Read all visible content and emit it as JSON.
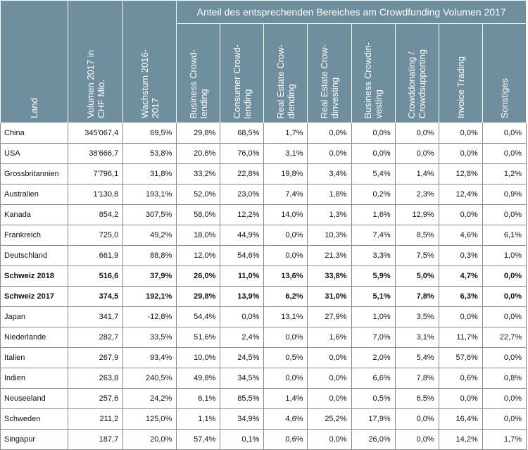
{
  "header": {
    "land": "Land",
    "volumen": "Volumen 2017 in\nCHF Mio.",
    "wachstum": "Wachstum 2016-\n2017",
    "group": "Anteil des entsprechenden Bereiches am Crowdfunding Volumen 2017",
    "sub": [
      "Business Crowd-\nlending",
      "Consumer Crowd-\nlending",
      "Real Estate Crow-\ndlending",
      "Real Estate Crow-\ndinvesting",
      "Business Crowdin-\nvesting",
      "Crowddonating /\nCrowdsupporting",
      "Invoice Trading",
      "Sonstiges"
    ]
  },
  "rows": [
    {
      "land": "China",
      "volumen": "345'067,4",
      "wachstum": "69,5%",
      "v": [
        "29,8%",
        "68,5%",
        "1,7%",
        "0,0%",
        "0,0%",
        "0,0%",
        "0,0%",
        "0,0%"
      ],
      "bold": false
    },
    {
      "land": "USA",
      "volumen": "38'666,7",
      "wachstum": "53,8%",
      "v": [
        "20,8%",
        "76,0%",
        "3,1%",
        "0,0%",
        "0,0%",
        "0,0%",
        "0,0%",
        "0,0%"
      ],
      "bold": false
    },
    {
      "land": "Grossbritannien",
      "volumen": "7'796,1",
      "wachstum": "31,8%",
      "v": [
        "33,2%",
        "22,8%",
        "19,8%",
        "3,4%",
        "5,4%",
        "1,4%",
        "12,8%",
        "1,2%"
      ],
      "bold": false
    },
    {
      "land": "Australien",
      "volumen": "1'130,8",
      "wachstum": "193,1%",
      "v": [
        "52,0%",
        "23,0%",
        "7,4%",
        "1,8%",
        "0,2%",
        "2,3%",
        "12,4%",
        "0,9%"
      ],
      "bold": false
    },
    {
      "land": "Kanada",
      "volumen": "854,2",
      "wachstum": "307,5%",
      "v": [
        "58,0%",
        "12,2%",
        "14,0%",
        "1,3%",
        "1,6%",
        "12,9%",
        "0,0%",
        "0,0%"
      ],
      "bold": false
    },
    {
      "land": "Frankreich",
      "volumen": "725,0",
      "wachstum": "49,2%",
      "v": [
        "18,0%",
        "44,9%",
        "0,0%",
        "10,3%",
        "7,4%",
        "8,5%",
        "4,6%",
        "6,1%"
      ],
      "bold": false
    },
    {
      "land": "Deutschland",
      "volumen": "661,9",
      "wachstum": "88,8%",
      "v": [
        "12,0%",
        "54,6%",
        "0,0%",
        "21,3%",
        "3,3%",
        "7,5%",
        "0,3%",
        "1,0%"
      ],
      "bold": false
    },
    {
      "land": "Schweiz 2018",
      "volumen": "516,6",
      "wachstum": "37,9%",
      "v": [
        "26,0%",
        "11,0%",
        "13,6%",
        "33,8%",
        "5,9%",
        "5,0%",
        "4,7%",
        "0,0%"
      ],
      "bold": true
    },
    {
      "land": "Schweiz 2017",
      "volumen": "374,5",
      "wachstum": "192,1%",
      "v": [
        "29,8%",
        "13,9%",
        "6,2%",
        "31,0%",
        "5,1%",
        "7,8%",
        "6,3%",
        "0,0%"
      ],
      "bold": true
    },
    {
      "land": "Japan",
      "volumen": "341,7",
      "wachstum": "-12,8%",
      "v": [
        "54,4%",
        "0,0%",
        "13,1%",
        "27,9%",
        "1,0%",
        "3,5%",
        "0,0%",
        "0,0%"
      ],
      "bold": false
    },
    {
      "land": "Niederlande",
      "volumen": "282,7",
      "wachstum": "33,5%",
      "v": [
        "51,6%",
        "2,4%",
        "0,0%",
        "1,6%",
        "7,0%",
        "3,1%",
        "11,7%",
        "22,7%"
      ],
      "bold": false
    },
    {
      "land": "Italien",
      "volumen": "267,9",
      "wachstum": "93,4%",
      "v": [
        "10,0%",
        "24,5%",
        "0,5%",
        "0,0%",
        "2,0%",
        "5,4%",
        "57,6%",
        "0,0%"
      ],
      "bold": false
    },
    {
      "land": "Indien",
      "volumen": "263,8",
      "wachstum": "240,5%",
      "v": [
        "49,8%",
        "34,5%",
        "0,0%",
        "0,0%",
        "6,6%",
        "7,8%",
        "0,6%",
        "0,8%"
      ],
      "bold": false
    },
    {
      "land": "Neuseeland",
      "volumen": "257,6",
      "wachstum": "24,2%",
      "v": [
        "6,1%",
        "85,5%",
        "1,4%",
        "0,0%",
        "0,5%",
        "6,5%",
        "0,0%",
        "0,0%"
      ],
      "bold": false
    },
    {
      "land": "Schweden",
      "volumen": "211,2",
      "wachstum": "125,0%",
      "v": [
        "1,1%",
        "34,9%",
        "4,6%",
        "25,2%",
        "17,9%",
        "0,0%",
        "16,4%",
        "0,0%"
      ],
      "bold": false
    },
    {
      "land": "Singapur",
      "volumen": "187,7",
      "wachstum": "20,0%",
      "v": [
        "57,4%",
        "0,1%",
        "0,6%",
        "0,0%",
        "26,0%",
        "0,0%",
        "14,2%",
        "1,7%"
      ],
      "bold": false
    }
  ]
}
